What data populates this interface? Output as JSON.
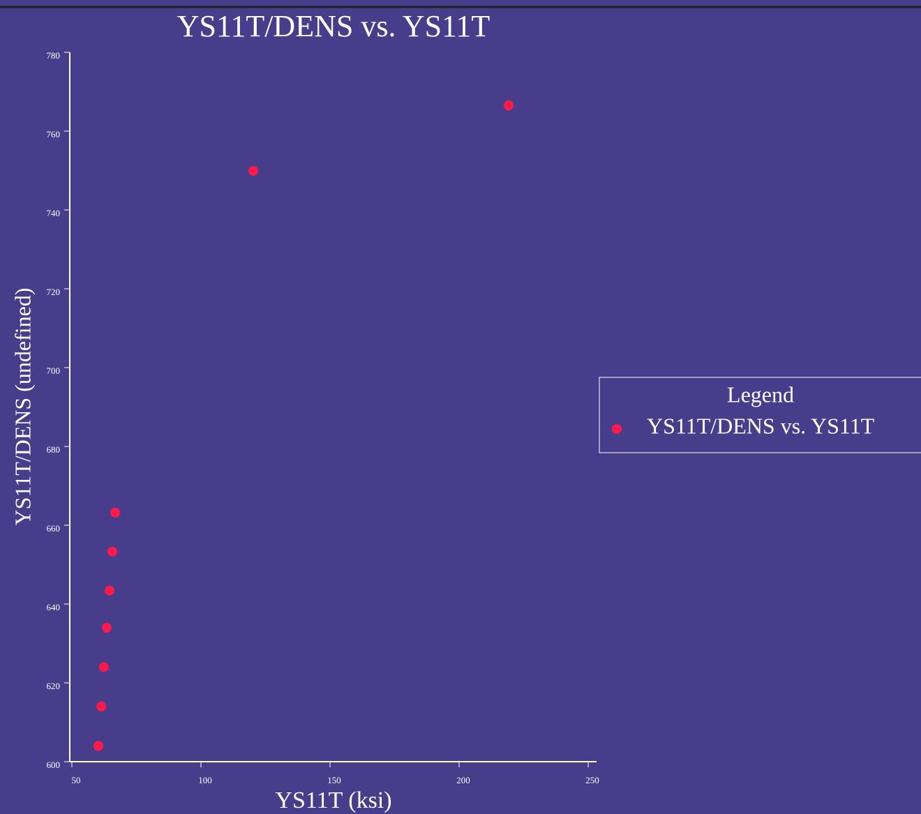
{
  "chart_data": {
    "type": "scatter",
    "title": "YS11T/DENS vs. YS11T",
    "xlabel": "YS11T (ksi)",
    "ylabel": "YS11T/DENS (undefined)",
    "legend_title": "Legend",
    "legend": "right",
    "series": [
      {
        "name": "YS11T/DENS vs. YS11T",
        "color": "#ff1a4a",
        "x": [
          60.3,
          61.4,
          62.4,
          63.5,
          64.6,
          65.7,
          66.8,
          120.3,
          219.2
        ],
        "values": [
          604,
          614,
          624,
          634,
          643.4,
          653.3,
          663.2,
          749.9,
          766.5
        ]
      }
    ],
    "xlim": [
      50,
      250
    ],
    "xticks": [
      50,
      100,
      150,
      200,
      250
    ],
    "ylim": [
      600,
      780
    ],
    "yticks": [
      600,
      620,
      640,
      660,
      680,
      700,
      720,
      740,
      760,
      780
    ]
  }
}
